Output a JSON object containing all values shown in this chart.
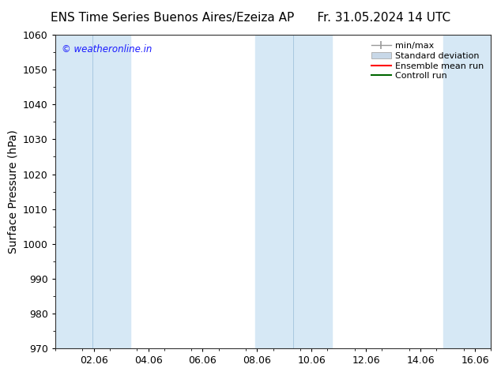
{
  "title_left": "ENS Time Series Buenos Aires/Ezeiza AP",
  "title_right": "Fr. 31.05.2024 14 UTC",
  "ylabel": "Surface Pressure (hPa)",
  "ylim": [
    970,
    1060
  ],
  "yticks": [
    970,
    980,
    990,
    1000,
    1010,
    1020,
    1030,
    1040,
    1050,
    1060
  ],
  "xtick_labels": [
    "02.06",
    "04.06",
    "06.06",
    "08.06",
    "10.06",
    "12.06",
    "14.06",
    "16.06"
  ],
  "watermark": "© weatheronline.in",
  "watermark_color": "#1a1aff",
  "bg_color": "#ffffff",
  "shaded_band_color": "#d6e8f5",
  "shaded_band_inner_line_color": "#a8c8e0",
  "legend_entries": [
    {
      "label": "min/max",
      "type": "errorbar",
      "color": "#999999"
    },
    {
      "label": "Standard deviation",
      "type": "fill",
      "color": "#c8d8e8"
    },
    {
      "label": "Ensemble mean run",
      "type": "line",
      "color": "#ff0000"
    },
    {
      "label": "Controll run",
      "type": "line",
      "color": "#006600"
    }
  ],
  "title_fontsize": 11,
  "axis_label_fontsize": 10,
  "tick_fontsize": 9,
  "legend_fontsize": 8
}
